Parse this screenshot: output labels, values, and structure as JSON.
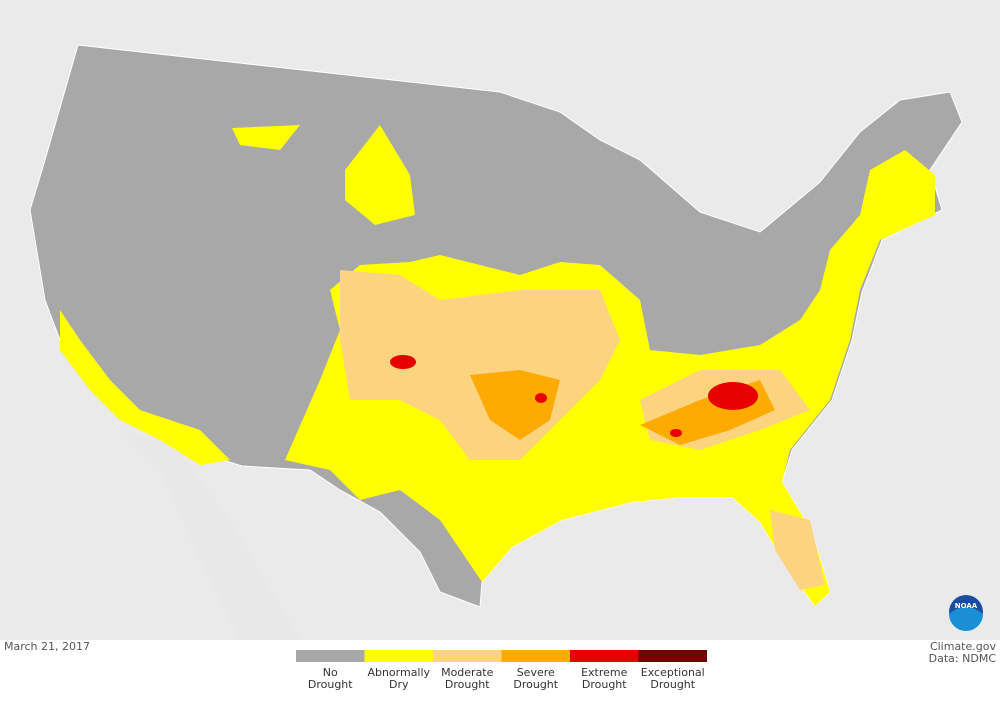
{
  "map": {
    "date": "March 21, 2017",
    "credit": "Climate.gov",
    "source": "Data: NDMC",
    "logo": "NOAA",
    "legend": [
      {
        "lines": [
          "No",
          "Drought"
        ],
        "color": "#a8a8a8"
      },
      {
        "lines": [
          "Abnormally",
          "Dry"
        ],
        "color": "#ffff00"
      },
      {
        "lines": [
          "Moderate",
          "Drought"
        ],
        "color": "#fcd37f"
      },
      {
        "lines": [
          "Severe",
          "Drought"
        ],
        "color": "#ffaa00"
      },
      {
        "lines": [
          "Extreme",
          "Drought"
        ],
        "color": "#e60000"
      },
      {
        "lines": [
          "Exceptional",
          "Drought"
        ],
        "color": "#730000"
      }
    ]
  }
}
